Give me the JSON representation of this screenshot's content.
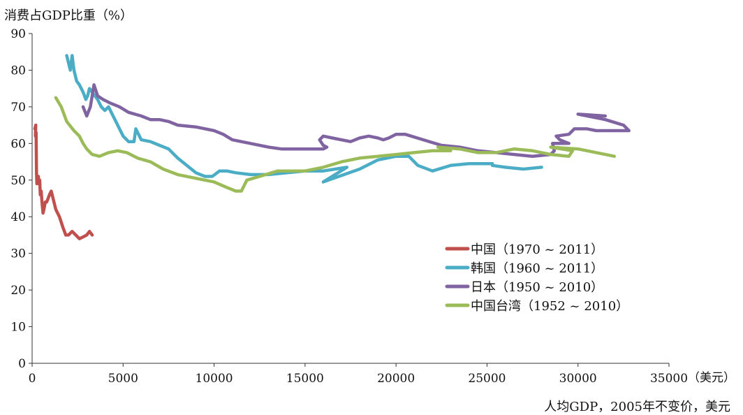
{
  "chart_data": {
    "type": "line",
    "ylabel": "消费占GDP比重（%）",
    "xlabel": "人均GDP，2005年不变价，美元",
    "x_unit_label": "（美元）",
    "xlim": [
      0,
      35000
    ],
    "ylim": [
      0,
      90
    ],
    "xticks": [
      0,
      5000,
      10000,
      15000,
      20000,
      25000,
      30000,
      35000
    ],
    "yticks": [
      0,
      10,
      20,
      30,
      40,
      50,
      60,
      70,
      80,
      90
    ],
    "grid": false,
    "legend_position": "right-middle",
    "series": [
      {
        "name": "中国（1970 ~ 2011）",
        "color": "#c0504d",
        "points": [
          [
            150,
            64
          ],
          [
            200,
            65
          ],
          [
            180,
            62
          ],
          [
            220,
            63
          ],
          [
            240,
            52
          ],
          [
            260,
            49
          ],
          [
            300,
            50
          ],
          [
            340,
            51
          ],
          [
            380,
            49
          ],
          [
            420,
            50
          ],
          [
            450,
            46
          ],
          [
            500,
            47
          ],
          [
            540,
            44
          ],
          [
            600,
            41
          ],
          [
            650,
            42
          ],
          [
            720,
            44
          ],
          [
            800,
            44
          ],
          [
            880,
            45
          ],
          [
            950,
            46
          ],
          [
            1050,
            47
          ],
          [
            1150,
            45
          ],
          [
            1300,
            42
          ],
          [
            1500,
            40
          ],
          [
            1700,
            37
          ],
          [
            1850,
            35
          ],
          [
            2000,
            35
          ],
          [
            2200,
            36
          ],
          [
            2400,
            35
          ],
          [
            2600,
            34
          ],
          [
            2800,
            34.5
          ],
          [
            3000,
            35
          ],
          [
            3150,
            36
          ],
          [
            3300,
            35
          ]
        ]
      },
      {
        "name": "韩国（1960 ~ 2011）",
        "color": "#4bacc6",
        "points": [
          [
            1900,
            84
          ],
          [
            2000,
            82
          ],
          [
            2100,
            80
          ],
          [
            2200,
            84
          ],
          [
            2300,
            80
          ],
          [
            2450,
            77
          ],
          [
            2600,
            76
          ],
          [
            2800,
            74
          ],
          [
            2950,
            72
          ],
          [
            3050,
            73
          ],
          [
            3150,
            75
          ],
          [
            3300,
            74
          ],
          [
            3450,
            73
          ],
          [
            3600,
            72
          ],
          [
            3800,
            70
          ],
          [
            4000,
            69
          ],
          [
            4200,
            70
          ],
          [
            4600,
            66
          ],
          [
            5000,
            62
          ],
          [
            5300,
            60.5
          ],
          [
            5600,
            60.5
          ],
          [
            5700,
            64
          ],
          [
            6000,
            61
          ],
          [
            6500,
            60.5
          ],
          [
            7000,
            59.5
          ],
          [
            7500,
            58.5
          ],
          [
            8000,
            56
          ],
          [
            8500,
            54
          ],
          [
            9000,
            52
          ],
          [
            9500,
            51
          ],
          [
            9900,
            51
          ],
          [
            10300,
            52.5
          ],
          [
            10700,
            52.5
          ],
          [
            11200,
            52
          ],
          [
            12000,
            51.5
          ],
          [
            13000,
            51.5
          ],
          [
            14000,
            52
          ],
          [
            15000,
            52.5
          ],
          [
            16000,
            52.5
          ],
          [
            17300,
            53.5
          ],
          [
            16000,
            49.5
          ],
          [
            18000,
            53
          ],
          [
            19000,
            55.5
          ],
          [
            20000,
            56.5
          ],
          [
            20700,
            56.5
          ],
          [
            21200,
            54
          ],
          [
            22000,
            52.5
          ],
          [
            23000,
            54
          ],
          [
            24000,
            54.5
          ],
          [
            25000,
            54.5
          ],
          [
            25300,
            54.5
          ],
          [
            25300,
            54
          ],
          [
            26000,
            53.5
          ],
          [
            27000,
            53
          ],
          [
            28000,
            53.5
          ]
        ]
      },
      {
        "name": "日本（1950 ~ 2010）",
        "color": "#8064a2",
        "points": [
          [
            2800,
            70
          ],
          [
            3000,
            67.5
          ],
          [
            3200,
            70
          ],
          [
            3400,
            76
          ],
          [
            3600,
            73
          ],
          [
            3900,
            72
          ],
          [
            4300,
            71
          ],
          [
            4800,
            70
          ],
          [
            5300,
            68.5
          ],
          [
            6000,
            67.5
          ],
          [
            6500,
            66.5
          ],
          [
            7000,
            66.5
          ],
          [
            7500,
            66
          ],
          [
            8000,
            65
          ],
          [
            9000,
            64.5
          ],
          [
            10000,
            63.5
          ],
          [
            10500,
            62.5
          ],
          [
            11000,
            61
          ],
          [
            12000,
            60
          ],
          [
            13000,
            59
          ],
          [
            13700,
            58.5
          ],
          [
            14500,
            58.5
          ],
          [
            15500,
            58.5
          ],
          [
            16000,
            58.5
          ],
          [
            16200,
            59
          ],
          [
            16000,
            59.5
          ],
          [
            15800,
            61
          ],
          [
            16000,
            62
          ],
          [
            16500,
            61.5
          ],
          [
            17500,
            60.5
          ],
          [
            18000,
            61.5
          ],
          [
            18500,
            62
          ],
          [
            19000,
            61.5
          ],
          [
            19300,
            61
          ],
          [
            19600,
            61.5
          ],
          [
            20000,
            62.5
          ],
          [
            20500,
            62.5
          ],
          [
            21500,
            61
          ],
          [
            22500,
            59.5
          ],
          [
            23500,
            59
          ],
          [
            24500,
            58
          ],
          [
            25500,
            57.5
          ],
          [
            26500,
            57
          ],
          [
            27500,
            56.5
          ],
          [
            28500,
            57
          ],
          [
            28700,
            58
          ],
          [
            28600,
            60
          ],
          [
            29500,
            60
          ],
          [
            29000,
            61
          ],
          [
            28800,
            62
          ],
          [
            29500,
            62.5
          ],
          [
            29800,
            64
          ],
          [
            30500,
            64
          ],
          [
            31000,
            63.5
          ],
          [
            32000,
            63.5
          ],
          [
            32800,
            63.5
          ],
          [
            32500,
            65
          ],
          [
            31500,
            66.5
          ],
          [
            31000,
            67
          ],
          [
            30000,
            68
          ],
          [
            31500,
            67.5
          ]
        ]
      },
      {
        "name": "中国台湾（1952 ~ 2010）",
        "color": "#9bbb59",
        "points": [
          [
            1300,
            72.5
          ],
          [
            1600,
            70
          ],
          [
            1900,
            66
          ],
          [
            2300,
            63.5
          ],
          [
            2600,
            62
          ],
          [
            2800,
            60
          ],
          [
            3000,
            58.5
          ],
          [
            3300,
            57
          ],
          [
            3700,
            56.5
          ],
          [
            4200,
            57.5
          ],
          [
            4700,
            58
          ],
          [
            5200,
            57.5
          ],
          [
            5800,
            56
          ],
          [
            6500,
            55
          ],
          [
            7200,
            53
          ],
          [
            8000,
            51.5
          ],
          [
            9000,
            50.5
          ],
          [
            10000,
            49.5
          ],
          [
            10700,
            48
          ],
          [
            11200,
            47
          ],
          [
            11500,
            47
          ],
          [
            11800,
            50
          ],
          [
            12500,
            51
          ],
          [
            13500,
            52.5
          ],
          [
            15000,
            52.5
          ],
          [
            16000,
            53.5
          ],
          [
            17000,
            55
          ],
          [
            18000,
            56
          ],
          [
            19000,
            56.5
          ],
          [
            20000,
            57
          ],
          [
            21000,
            57.5
          ],
          [
            22000,
            58
          ],
          [
            22500,
            58
          ],
          [
            23000,
            58
          ],
          [
            22300,
            59
          ],
          [
            23500,
            58.5
          ],
          [
            24500,
            57.5
          ],
          [
            25500,
            57.5
          ],
          [
            26500,
            58.5
          ],
          [
            27500,
            58
          ],
          [
            28500,
            57
          ],
          [
            29500,
            56.5
          ],
          [
            29700,
            58
          ],
          [
            28500,
            59
          ],
          [
            30000,
            58.5
          ],
          [
            31000,
            57.5
          ],
          [
            32000,
            56.5
          ]
        ]
      }
    ]
  }
}
